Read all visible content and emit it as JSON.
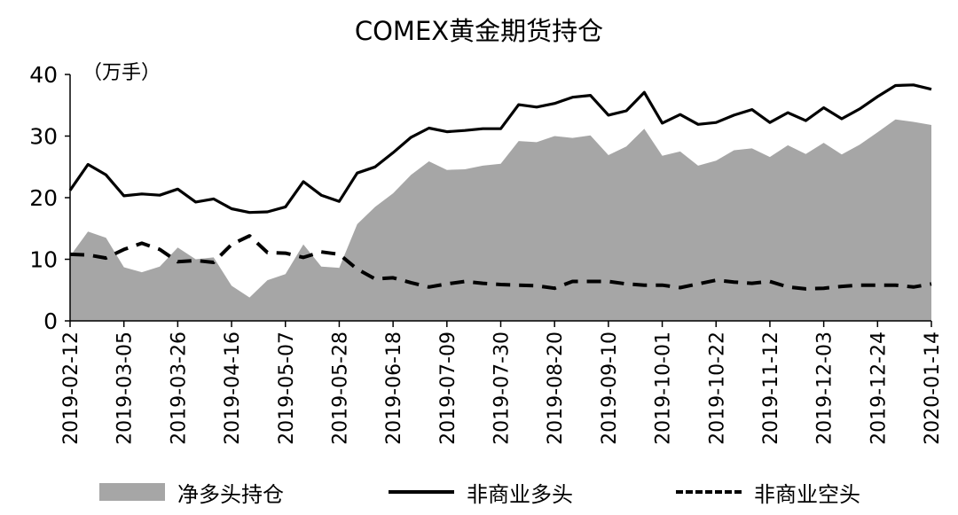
{
  "chart_data": {
    "type": "line",
    "title": "COMEX黄金期货持仓",
    "unit_label": "（万手）",
    "ylim": [
      0,
      40
    ],
    "yticks": [
      0,
      10,
      20,
      30,
      40
    ],
    "x_tick_labels": [
      "2019-02-12",
      "2019-03-05",
      "2019-03-26",
      "2019-04-16",
      "2019-05-07",
      "2019-05-28",
      "2019-06-18",
      "2019-07-09",
      "2019-07-30",
      "2019-08-20",
      "2019-09-10",
      "2019-10-01",
      "2019-10-22",
      "2019-11-12",
      "2019-12-03",
      "2019-12-24",
      "2020-01-14"
    ],
    "x": [
      "2019-02-12",
      "2019-02-19",
      "2019-02-26",
      "2019-03-05",
      "2019-03-12",
      "2019-03-19",
      "2019-03-26",
      "2019-04-02",
      "2019-04-09",
      "2019-04-16",
      "2019-04-23",
      "2019-04-30",
      "2019-05-07",
      "2019-05-14",
      "2019-05-21",
      "2019-05-28",
      "2019-06-04",
      "2019-06-11",
      "2019-06-18",
      "2019-06-25",
      "2019-07-02",
      "2019-07-09",
      "2019-07-16",
      "2019-07-23",
      "2019-07-30",
      "2019-08-06",
      "2019-08-13",
      "2019-08-20",
      "2019-08-27",
      "2019-09-03",
      "2019-09-10",
      "2019-09-17",
      "2019-09-24",
      "2019-10-01",
      "2019-10-08",
      "2019-10-15",
      "2019-10-22",
      "2019-10-29",
      "2019-11-05",
      "2019-11-12",
      "2019-11-19",
      "2019-11-26",
      "2019-12-03",
      "2019-12-10",
      "2019-12-17",
      "2019-12-24",
      "2019-12-31",
      "2020-01-07",
      "2020-01-14"
    ],
    "series": [
      {
        "name": "净多头持仓",
        "style": "area",
        "color": "#a6a6a6",
        "values": [
          10.5,
          14.5,
          13.5,
          8.7,
          7.9,
          8.8,
          11.9,
          10.0,
          10.3,
          5.7,
          3.8,
          6.6,
          7.6,
          12.4,
          8.8,
          8.6,
          15.7,
          18.5,
          20.7,
          23.7,
          25.9,
          24.5,
          24.6,
          25.2,
          25.5,
          29.2,
          29.0,
          30.0,
          29.7,
          30.1,
          26.9,
          28.3,
          31.2,
          26.8,
          27.5,
          25.2,
          26.0,
          27.7,
          28.0,
          26.6,
          28.5,
          27.1,
          28.9,
          27.0,
          28.6,
          30.6,
          32.7,
          32.3,
          31.8
        ]
      },
      {
        "name": "非商业多头",
        "style": "solid",
        "color": "#000000",
        "values": [
          21.2,
          25.4,
          23.7,
          20.3,
          20.6,
          20.4,
          21.4,
          19.3,
          19.8,
          18.2,
          17.6,
          17.7,
          18.5,
          22.6,
          20.4,
          19.4,
          24.0,
          25.0,
          27.3,
          29.8,
          31.3,
          30.7,
          30.9,
          31.2,
          31.2,
          35.1,
          34.7,
          35.3,
          36.3,
          36.6,
          33.4,
          34.1,
          37.1,
          32.1,
          33.5,
          31.9,
          32.2,
          33.4,
          34.3,
          32.2,
          33.8,
          32.5,
          34.6,
          32.8,
          34.4,
          36.4,
          38.2,
          38.3,
          37.6
        ]
      },
      {
        "name": "非商业空头",
        "style": "dashed",
        "color": "#000000",
        "values": [
          10.8,
          10.7,
          10.2,
          11.6,
          12.6,
          11.6,
          9.6,
          9.8,
          9.5,
          12.4,
          13.8,
          11.1,
          11.0,
          10.3,
          11.2,
          10.8,
          8.4,
          6.8,
          7.0,
          6.2,
          5.5,
          6.0,
          6.4,
          6.1,
          5.9,
          5.8,
          5.7,
          5.3,
          6.4,
          6.4,
          6.4,
          6.0,
          5.8,
          5.8,
          5.4,
          6.0,
          6.6,
          6.3,
          6.1,
          6.4,
          5.5,
          5.2,
          5.3,
          5.6,
          5.8,
          5.8,
          5.8,
          5.5,
          6.0
        ]
      }
    ],
    "grid": false,
    "legend_position": "bottom"
  }
}
